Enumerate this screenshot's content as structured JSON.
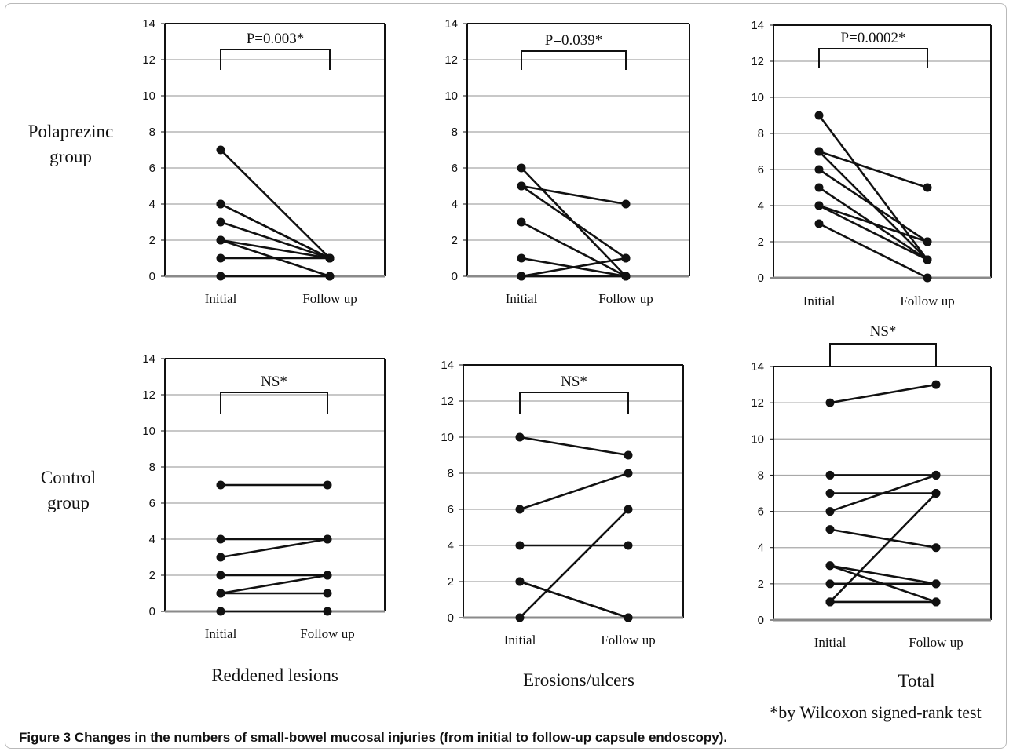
{
  "figure": {
    "caption_label": "Figure 3",
    "caption_text": "Changes in the numbers of small-bowel mucosal injuries (from initial to follow-up capsule endoscopy).",
    "row_labels": [
      [
        "Polaprezinc",
        "group"
      ],
      [
        "Control",
        "group"
      ]
    ],
    "column_labels": [
      "Reddened lesions",
      "Erosions/ulcers",
      "Total"
    ],
    "footnote": "*by Wilcoxon signed-rank test"
  },
  "chart_data": [
    {
      "type": "line",
      "group": "Polaprezinc group",
      "panel": "Reddened lesions",
      "categories": [
        "Initial",
        "Follow up"
      ],
      "ylim": [
        0,
        14
      ],
      "yticks": [
        0,
        2,
        4,
        6,
        8,
        10,
        12,
        14
      ],
      "grid": true,
      "annotation": "P=0.003*",
      "pairs": [
        [
          7,
          1
        ],
        [
          4,
          1
        ],
        [
          4,
          1
        ],
        [
          3,
          1
        ],
        [
          2,
          1
        ],
        [
          2,
          0
        ],
        [
          1,
          1
        ],
        [
          0,
          0
        ]
      ]
    },
    {
      "type": "line",
      "group": "Polaprezinc group",
      "panel": "Erosions/ulcers",
      "categories": [
        "Initial",
        "Follow up"
      ],
      "ylim": [
        0,
        14
      ],
      "yticks": [
        0,
        2,
        4,
        6,
        8,
        10,
        12,
        14
      ],
      "grid": true,
      "annotation": "P=0.039*",
      "pairs": [
        [
          6,
          0
        ],
        [
          5,
          4
        ],
        [
          5,
          1
        ],
        [
          3,
          0
        ],
        [
          1,
          0
        ],
        [
          0,
          1
        ],
        [
          0,
          0
        ]
      ]
    },
    {
      "type": "line",
      "group": "Polaprezinc group",
      "panel": "Total",
      "categories": [
        "Initial",
        "Follow up"
      ],
      "ylim": [
        0,
        14
      ],
      "yticks": [
        0,
        2,
        4,
        6,
        8,
        10,
        12,
        14
      ],
      "grid": true,
      "annotation": "P=0.0002*",
      "pairs": [
        [
          9,
          1
        ],
        [
          7,
          5
        ],
        [
          7,
          1
        ],
        [
          6,
          2
        ],
        [
          5,
          1
        ],
        [
          4,
          2
        ],
        [
          4,
          1
        ],
        [
          3,
          0
        ]
      ]
    },
    {
      "type": "line",
      "group": "Control group",
      "panel": "Reddened lesions",
      "categories": [
        "Initial",
        "Follow up"
      ],
      "ylim": [
        0,
        14
      ],
      "yticks": [
        0,
        2,
        4,
        6,
        8,
        10,
        12,
        14
      ],
      "grid": true,
      "annotation": "NS*",
      "pairs": [
        [
          7,
          7
        ],
        [
          4,
          4
        ],
        [
          3,
          4
        ],
        [
          2,
          2
        ],
        [
          1,
          2
        ],
        [
          1,
          1
        ],
        [
          0,
          0
        ]
      ]
    },
    {
      "type": "line",
      "group": "Control group",
      "panel": "Erosions/ulcers",
      "categories": [
        "Initial",
        "Follow up"
      ],
      "ylim": [
        0,
        14
      ],
      "yticks": [
        0,
        2,
        4,
        6,
        8,
        10,
        12,
        14
      ],
      "grid": true,
      "annotation": "NS*",
      "pairs": [
        [
          10,
          9
        ],
        [
          6,
          8
        ],
        [
          4,
          4
        ],
        [
          2,
          0
        ],
        [
          2,
          0
        ],
        [
          0,
          6
        ]
      ]
    },
    {
      "type": "line",
      "group": "Control group",
      "panel": "Total",
      "categories": [
        "Initial",
        "Follow up"
      ],
      "ylim": [
        0,
        14
      ],
      "yticks": [
        0,
        2,
        4,
        6,
        8,
        10,
        12,
        14
      ],
      "grid": true,
      "annotation": "NS*",
      "pairs": [
        [
          12,
          13
        ],
        [
          8,
          8
        ],
        [
          7,
          7
        ],
        [
          6,
          8
        ],
        [
          5,
          4
        ],
        [
          3,
          2
        ],
        [
          3,
          1
        ],
        [
          2,
          2
        ],
        [
          1,
          7
        ],
        [
          1,
          1
        ]
      ]
    }
  ]
}
